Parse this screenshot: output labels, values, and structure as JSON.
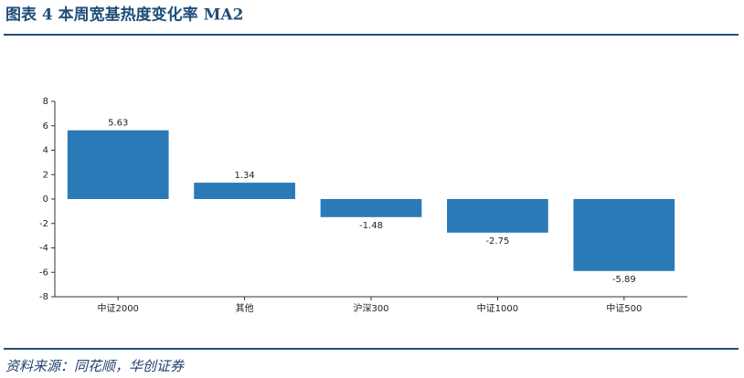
{
  "chart_data": {
    "type": "bar",
    "title": "图表 4   本周宽基热度变化率 MA2",
    "categories": [
      "中证2000",
      "其他",
      "沪深300",
      "中证1000",
      "中证500"
    ],
    "values": [
      5.63,
      1.34,
      -1.48,
      -2.75,
      -5.89
    ],
    "color": "#2a7ab8",
    "ylim": [
      -8,
      8
    ],
    "yticks": [
      -8,
      -6,
      -4,
      -2,
      0,
      2,
      4,
      6,
      8
    ],
    "grid": false
  },
  "source": "资料来源：同花顺，华创证券"
}
